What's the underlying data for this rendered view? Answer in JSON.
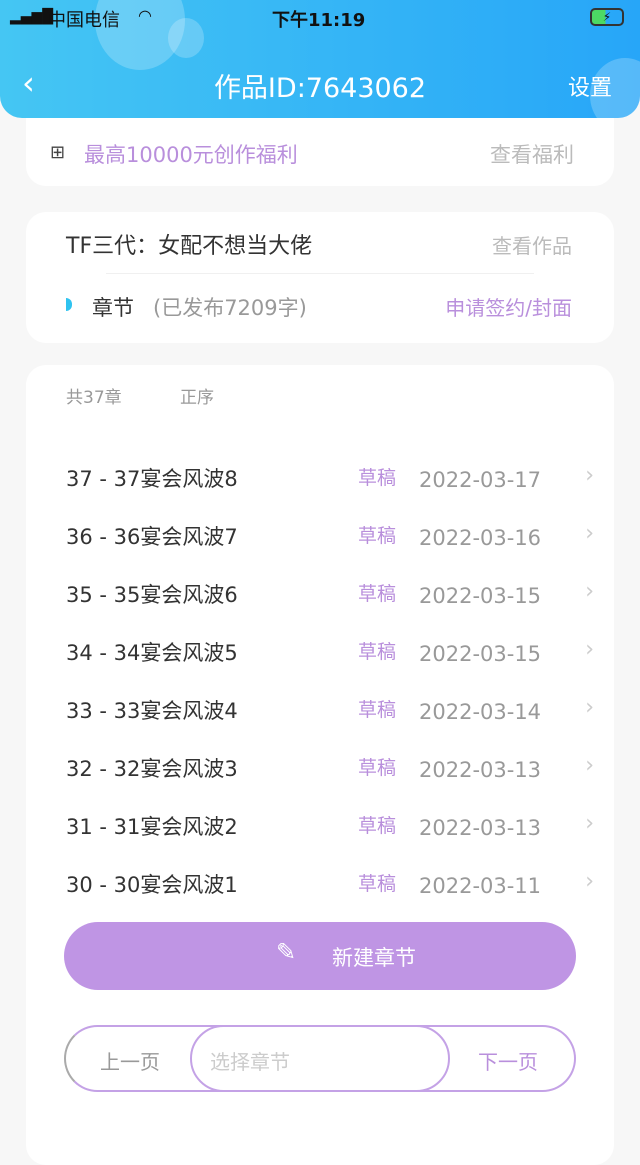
{
  "status": {
    "carrier": "中国电信",
    "time": "下午11:19"
  },
  "header": {
    "title": "作品ID:7643062",
    "settings": "设置"
  },
  "promo": {
    "text": "最高10000元创作福利",
    "link": "查看福利"
  },
  "work": {
    "title": "TF三代：女配不想当大佬",
    "view": "查看作品",
    "chapter_label": "章节",
    "published": "(已发布7209字)",
    "apply": "申请签约/封面"
  },
  "list": {
    "count": "共37章",
    "order": "正序",
    "rows": [
      {
        "name": "37 - 37宴会风波8",
        "status": "草稿",
        "date": "2022-03-17"
      },
      {
        "name": "36 - 36宴会风波7",
        "status": "草稿",
        "date": "2022-03-16"
      },
      {
        "name": "35 - 35宴会风波6",
        "status": "草稿",
        "date": "2022-03-15"
      },
      {
        "name": "34 - 34宴会风波5",
        "status": "草稿",
        "date": "2022-03-15"
      },
      {
        "name": "33 - 33宴会风波4",
        "status": "草稿",
        "date": "2022-03-14"
      },
      {
        "name": "32 - 32宴会风波3",
        "status": "草稿",
        "date": "2022-03-13"
      },
      {
        "name": "31 - 31宴会风波2",
        "status": "草稿",
        "date": "2022-03-13"
      },
      {
        "name": "30 - 30宴会风波1",
        "status": "草稿",
        "date": "2022-03-11"
      }
    ]
  },
  "new_chapter": "新建章节",
  "pager": {
    "prev": "上一页",
    "placeholder": "选择章节",
    "next": "下一页"
  },
  "colors": {
    "accent": "#bf95e4",
    "header": "#2fb0f6"
  }
}
